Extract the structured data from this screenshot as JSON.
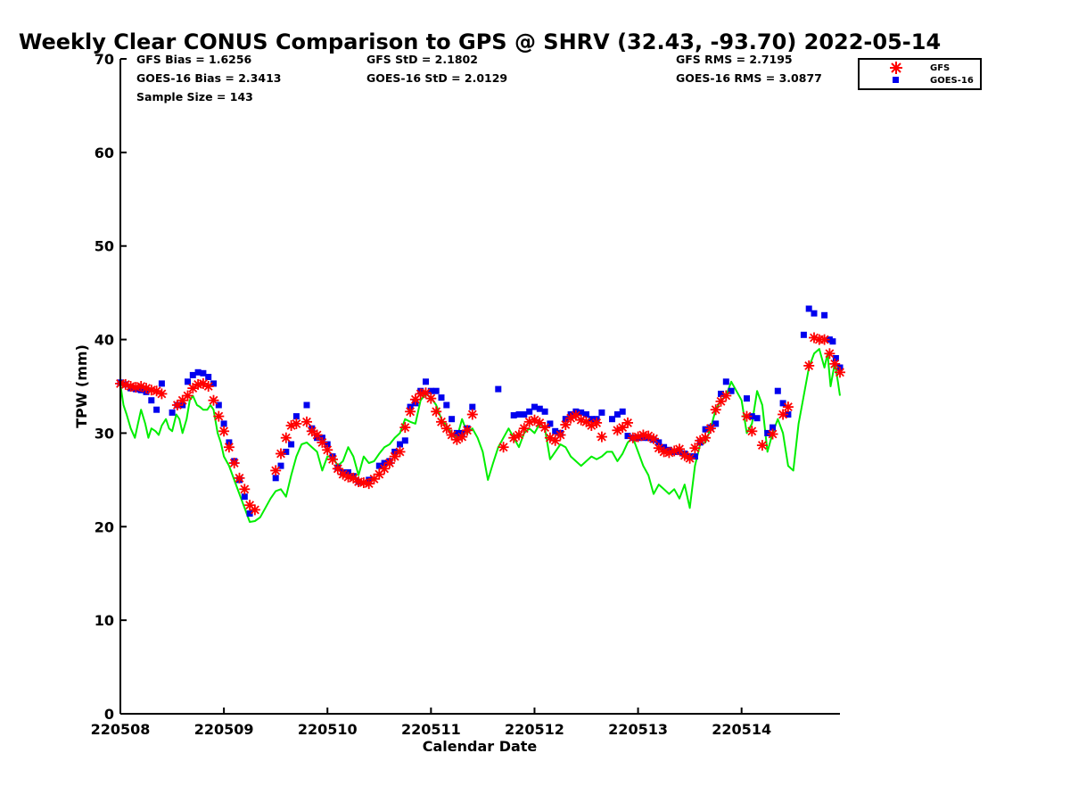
{
  "chart_data": {
    "type": "scatter",
    "title": "Weekly Clear CONUS Comparison to GPS @ SHRV (32.43, -93.70) 2022-05-14",
    "xlabel": "Calendar Date",
    "ylabel": "TPW (mm)",
    "xlim": [
      220508,
      220514.95
    ],
    "ylim": [
      0,
      70
    ],
    "x_ticks": [
      {
        "value": 220508,
        "label": "220508"
      },
      {
        "value": 220509,
        "label": "220509"
      },
      {
        "value": 220510,
        "label": "220510"
      },
      {
        "value": 220511,
        "label": "220511"
      },
      {
        "value": 220512,
        "label": "220512"
      },
      {
        "value": 220513,
        "label": "220513"
      },
      {
        "value": 220514,
        "label": "220514"
      }
    ],
    "y_ticks": [
      0,
      10,
      20,
      30,
      40,
      50,
      60,
      70
    ],
    "grid": false,
    "legend_position": "top-right",
    "stats": {
      "gfs_bias": "GFS Bias = 1.6256",
      "goes_bias": "GOES-16 Bias = 2.3413",
      "sample_size": "Sample Size = 143",
      "gfs_std": "GFS StD = 2.1802",
      "goes_std": "GOES-16 StD = 2.0129",
      "gfs_rms": "GFS RMS = 2.7195",
      "goes_rms": "GOES-16 RMS = 3.0877"
    },
    "series": [
      {
        "name": "GFS",
        "marker": "asterisk",
        "color": "#ff0000",
        "x": [
          220508.0,
          220508.05,
          220508.1,
          220508.15,
          220508.2,
          220508.25,
          220508.3,
          220508.35,
          220508.4,
          220508.55,
          220508.6,
          220508.65,
          220508.7,
          220508.75,
          220508.8,
          220508.85,
          220508.9,
          220508.95,
          220509.0,
          220509.05,
          220509.1,
          220509.15,
          220509.2,
          220509.25,
          220509.3,
          220509.5,
          220509.55,
          220509.6,
          220509.65,
          220509.7,
          220509.8,
          220509.85,
          220509.9,
          220509.95,
          220510.0,
          220510.05,
          220510.1,
          220510.15,
          220510.2,
          220510.25,
          220510.3,
          220510.35,
          220510.4,
          220510.45,
          220510.5,
          220510.55,
          220510.6,
          220510.65,
          220510.7,
          220510.75,
          220510.8,
          220510.85,
          220510.9,
          220510.95,
          220511.0,
          220511.05,
          220511.1,
          220511.15,
          220511.2,
          220511.25,
          220511.3,
          220511.35,
          220511.4,
          220511.7,
          220511.8,
          220511.85,
          220511.9,
          220511.95,
          220512.0,
          220512.05,
          220512.1,
          220512.15,
          220512.2,
          220512.25,
          220512.3,
          220512.35,
          220512.4,
          220512.45,
          220512.5,
          220512.55,
          220512.6,
          220512.65,
          220512.8,
          220512.85,
          220512.9,
          220512.95,
          220513.0,
          220513.05,
          220513.1,
          220513.15,
          220513.2,
          220513.25,
          220513.3,
          220513.35,
          220513.4,
          220513.45,
          220513.5,
          220513.55,
          220513.6,
          220513.65,
          220513.7,
          220513.75,
          220513.8,
          220513.85,
          220514.05,
          220514.1,
          220514.2,
          220514.3,
          220514.4,
          220514.45,
          220514.65,
          220514.7,
          220514.75,
          220514.8,
          220514.85,
          220514.9,
          220514.95
        ],
        "y": [
          35.3,
          35.2,
          35.0,
          34.9,
          35.0,
          34.8,
          34.6,
          34.5,
          34.2,
          33.0,
          33.5,
          34.0,
          34.8,
          35.2,
          35.3,
          35.0,
          33.5,
          31.8,
          30.2,
          28.5,
          26.8,
          25.2,
          24.0,
          22.3,
          21.8,
          26.0,
          27.8,
          29.5,
          30.8,
          31.0,
          31.2,
          30.2,
          29.8,
          29.0,
          28.2,
          27.2,
          26.2,
          25.6,
          25.3,
          25.2,
          24.8,
          24.7,
          24.6,
          25.1,
          25.6,
          26.2,
          26.8,
          27.5,
          28.0,
          30.6,
          32.3,
          33.6,
          34.2,
          34.3,
          33.7,
          32.3,
          31.2,
          30.5,
          29.8,
          29.3,
          29.6,
          30.3,
          32.0,
          28.5,
          29.5,
          29.8,
          30.5,
          31.2,
          31.4,
          31.1,
          30.6,
          29.5,
          29.2,
          29.8,
          30.9,
          31.6,
          31.9,
          31.4,
          31.2,
          30.8,
          31.1,
          29.6,
          30.3,
          30.6,
          31.1,
          29.5,
          29.6,
          29.8,
          29.7,
          29.4,
          28.4,
          28.0,
          27.9,
          28.1,
          28.3,
          27.6,
          27.3,
          28.4,
          29.2,
          29.5,
          30.5,
          32.5,
          33.4,
          34.0,
          31.8,
          30.2,
          28.7,
          29.9,
          32.0,
          32.8,
          37.2,
          40.2,
          40.0,
          40.0,
          38.5,
          37.4,
          36.5
        ]
      },
      {
        "name": "GOES-16",
        "marker": "square",
        "color": "#0000ee",
        "x": [
          220508.0,
          220508.05,
          220508.1,
          220508.15,
          220508.2,
          220508.25,
          220508.3,
          220508.35,
          220508.4,
          220508.5,
          220508.55,
          220508.6,
          220508.65,
          220508.7,
          220508.75,
          220508.8,
          220508.85,
          220508.9,
          220508.95,
          220509.0,
          220509.05,
          220509.1,
          220509.15,
          220509.2,
          220509.25,
          220509.5,
          220509.55,
          220509.6,
          220509.65,
          220509.7,
          220509.8,
          220509.85,
          220509.9,
          220509.95,
          220510.0,
          220510.05,
          220510.1,
          220510.15,
          220510.2,
          220510.25,
          220510.3,
          220510.4,
          220510.5,
          220510.55,
          220510.6,
          220510.65,
          220510.7,
          220510.75,
          220510.8,
          220510.85,
          220510.9,
          220510.95,
          220511.0,
          220511.05,
          220511.1,
          220511.15,
          220511.2,
          220511.25,
          220511.3,
          220511.35,
          220511.4,
          220511.65,
          220511.8,
          220511.85,
          220511.9,
          220511.95,
          220512.0,
          220512.05,
          220512.1,
          220512.15,
          220512.2,
          220512.25,
          220512.3,
          220512.35,
          220512.4,
          220512.45,
          220512.5,
          220512.55,
          220512.6,
          220512.65,
          220512.75,
          220512.8,
          220512.85,
          220512.9,
          220512.95,
          220513.0,
          220513.05,
          220513.1,
          220513.15,
          220513.2,
          220513.25,
          220513.3,
          220513.35,
          220513.4,
          220513.45,
          220513.5,
          220513.55,
          220513.6,
          220513.65,
          220513.7,
          220513.75,
          220513.8,
          220513.85,
          220513.9,
          220514.05,
          220514.1,
          220514.15,
          220514.25,
          220514.3,
          220514.35,
          220514.4,
          220514.45,
          220514.6,
          220514.65,
          220514.7,
          220514.8,
          220514.85,
          220514.88,
          220514.91,
          220514.95
        ],
        "y": [
          35.4,
          35.2,
          34.8,
          34.7,
          34.6,
          34.4,
          33.5,
          32.5,
          35.3,
          32.2,
          33.0,
          33.0,
          35.5,
          36.2,
          36.5,
          36.4,
          36.0,
          35.3,
          33.0,
          31.0,
          29.0,
          27.0,
          25.0,
          23.2,
          21.4,
          25.2,
          26.5,
          28.0,
          28.8,
          31.8,
          33.0,
          30.5,
          29.5,
          29.5,
          28.8,
          27.5,
          26.3,
          25.8,
          25.8,
          25.4,
          24.8,
          25.0,
          26.5,
          26.8,
          27.0,
          28.0,
          28.8,
          29.2,
          32.8,
          33.2,
          34.5,
          35.5,
          34.5,
          34.5,
          33.8,
          33.0,
          31.5,
          30.0,
          30.0,
          30.5,
          32.8,
          34.7,
          31.9,
          32.0,
          32.0,
          32.3,
          32.8,
          32.6,
          32.3,
          31.0,
          30.2,
          30.0,
          31.5,
          32.0,
          32.3,
          32.2,
          32.0,
          31.5,
          31.5,
          32.2,
          31.5,
          32.0,
          32.3,
          29.7,
          29.5,
          29.5,
          29.5,
          29.5,
          29.3,
          29.0,
          28.5,
          28.2,
          28.0,
          28.0,
          27.8,
          27.5,
          27.5,
          29.0,
          30.4,
          30.6,
          31.0,
          34.2,
          35.5,
          34.5,
          33.7,
          31.8,
          31.6,
          30.0,
          30.6,
          34.5,
          33.2,
          32.0,
          40.5,
          43.3,
          42.8,
          42.6,
          40.0,
          39.8,
          38.0,
          37.0
        ]
      },
      {
        "name": "",
        "marker": "line",
        "color": "#00ee00",
        "x": [
          220508.0,
          220508.03,
          220508.06,
          220508.1,
          220508.14,
          220508.17,
          220508.2,
          220508.24,
          220508.27,
          220508.3,
          220508.34,
          220508.37,
          220508.4,
          220508.44,
          220508.47,
          220508.5,
          220508.54,
          220508.57,
          220508.6,
          220508.64,
          220508.67,
          220508.7,
          220508.74,
          220508.77,
          220508.8,
          220508.84,
          220508.87,
          220508.9,
          220508.94,
          220508.97,
          220509.0,
          220509.05,
          220509.1,
          220509.15,
          220509.2,
          220509.25,
          220509.3,
          220509.35,
          220509.4,
          220509.45,
          220509.5,
          220509.55,
          220509.6,
          220509.65,
          220509.7,
          220509.75,
          220509.8,
          220509.85,
          220509.9,
          220509.95,
          220510.0,
          220510.05,
          220510.1,
          220510.15,
          220510.2,
          220510.25,
          220510.3,
          220510.35,
          220510.4,
          220510.45,
          220510.5,
          220510.55,
          220510.6,
          220510.65,
          220510.7,
          220510.75,
          220510.8,
          220510.85,
          220510.9,
          220510.95,
          220511.0,
          220511.05,
          220511.1,
          220511.15,
          220511.2,
          220511.25,
          220511.3,
          220511.35,
          220511.4,
          220511.45,
          220511.5,
          220511.55,
          220511.6,
          220511.65,
          220511.7,
          220511.75,
          220511.8,
          220511.85,
          220511.9,
          220511.95,
          220512.0,
          220512.05,
          220512.1,
          220512.15,
          220512.2,
          220512.25,
          220512.3,
          220512.35,
          220512.4,
          220512.45,
          220512.5,
          220512.55,
          220512.6,
          220512.65,
          220512.7,
          220512.75,
          220512.8,
          220512.85,
          220512.9,
          220512.95,
          220513.0,
          220513.05,
          220513.1,
          220513.15,
          220513.2,
          220513.25,
          220513.3,
          220513.35,
          220513.4,
          220513.45,
          220513.5,
          220513.55,
          220513.6,
          220513.65,
          220513.7,
          220513.75,
          220513.8,
          220513.85,
          220513.9,
          220513.95,
          220514.0,
          220514.05,
          220514.1,
          220514.15,
          220514.2,
          220514.25,
          220514.3,
          220514.35,
          220514.4,
          220514.45,
          220514.5,
          220514.55,
          220514.6,
          220514.65,
          220514.7,
          220514.75,
          220514.8,
          220514.83,
          220514.86,
          220514.9,
          220514.93,
          220514.95
        ],
        "y": [
          35.2,
          33.0,
          32.0,
          30.5,
          29.5,
          31.0,
          32.5,
          31.0,
          29.5,
          30.5,
          30.2,
          29.8,
          30.8,
          31.5,
          30.5,
          30.2,
          32.0,
          31.5,
          30.0,
          31.5,
          33.5,
          34.0,
          33.0,
          32.8,
          32.5,
          32.5,
          33.0,
          32.5,
          30.0,
          29.0,
          27.5,
          26.5,
          25.0,
          23.5,
          22.0,
          20.5,
          20.6,
          21.0,
          22.0,
          23.0,
          23.8,
          24.0,
          23.2,
          25.5,
          27.5,
          28.8,
          29.0,
          28.5,
          28.0,
          26.0,
          27.5,
          27.5,
          26.5,
          27.0,
          28.5,
          27.5,
          25.5,
          27.5,
          26.8,
          27.0,
          27.8,
          28.5,
          28.8,
          29.5,
          30.0,
          31.5,
          31.2,
          31.0,
          33.5,
          34.2,
          33.8,
          33.0,
          31.5,
          30.8,
          30.0,
          29.5,
          31.5,
          30.0,
          30.5,
          29.5,
          28.0,
          25.0,
          26.8,
          28.5,
          29.5,
          30.5,
          29.5,
          28.5,
          30.0,
          30.5,
          30.0,
          31.0,
          30.5,
          27.2,
          28.0,
          28.8,
          28.5,
          27.5,
          27.0,
          26.5,
          27.0,
          27.5,
          27.2,
          27.5,
          28.0,
          28.0,
          27.0,
          27.8,
          29.0,
          29.5,
          28.0,
          26.5,
          25.5,
          23.5,
          24.5,
          24.0,
          23.5,
          24.0,
          23.0,
          24.5,
          22.0,
          26.5,
          28.8,
          29.0,
          30.5,
          32.5,
          33.5,
          34.0,
          35.5,
          34.5,
          33.5,
          30.0,
          31.0,
          34.5,
          33.0,
          28.0,
          30.0,
          31.5,
          30.0,
          26.5,
          26.0,
          31.0,
          34.0,
          37.0,
          38.5,
          39.0,
          37.0,
          38.5,
          35.0,
          37.5,
          35.5,
          34.0
        ]
      }
    ]
  }
}
